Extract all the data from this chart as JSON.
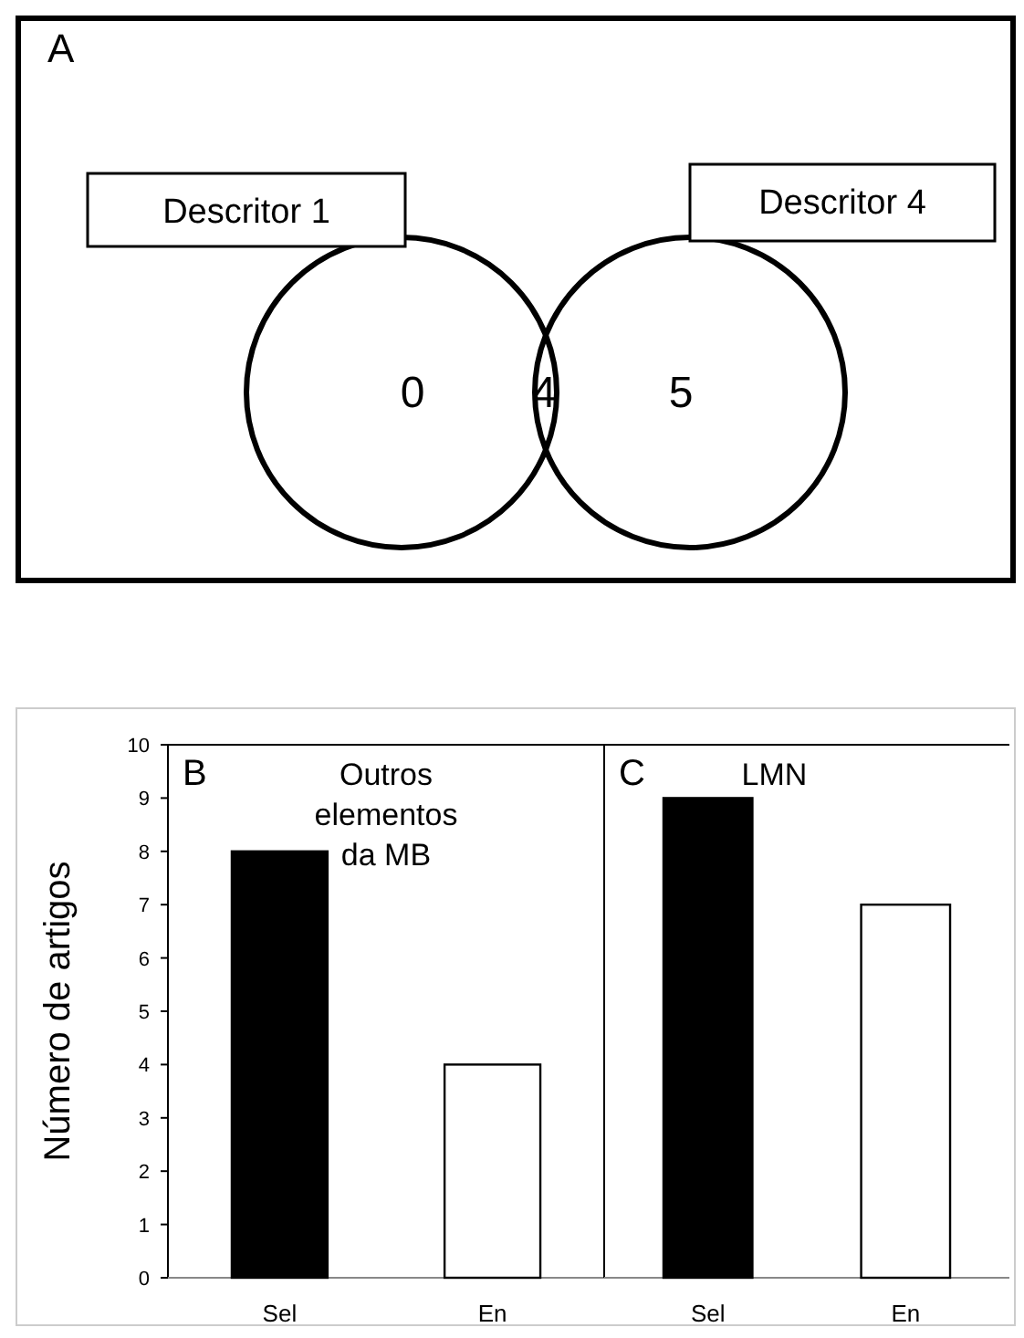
{
  "chart_data": [
    {
      "type": "other",
      "title": "A",
      "categories": [
        "Descritor 1",
        null,
        "Descritor 4"
      ],
      "values": [
        0,
        4,
        5
      ],
      "data_labels": true
    },
    {
      "type": "bar",
      "title": "B",
      "subtitle": "Outros elementos da MB",
      "ylabel": "Número de artigos",
      "categories": [
        "Sel",
        "En"
      ],
      "values": [
        8,
        4
      ],
      "colors": [
        "#000000",
        "#ffffff"
      ],
      "ylim": [
        0,
        10
      ],
      "yticks": [
        0,
        1,
        2,
        3,
        4,
        5,
        6,
        7,
        8,
        9,
        10
      ]
    },
    {
      "type": "bar",
      "title": "C",
      "subtitle": "LMN",
      "categories": [
        "Sel",
        "En"
      ],
      "values": [
        9,
        7
      ],
      "colors": [
        "#000000",
        "#ffffff"
      ],
      "ylim": [
        0,
        10
      ],
      "tick_labels": "x"
    }
  ]
}
